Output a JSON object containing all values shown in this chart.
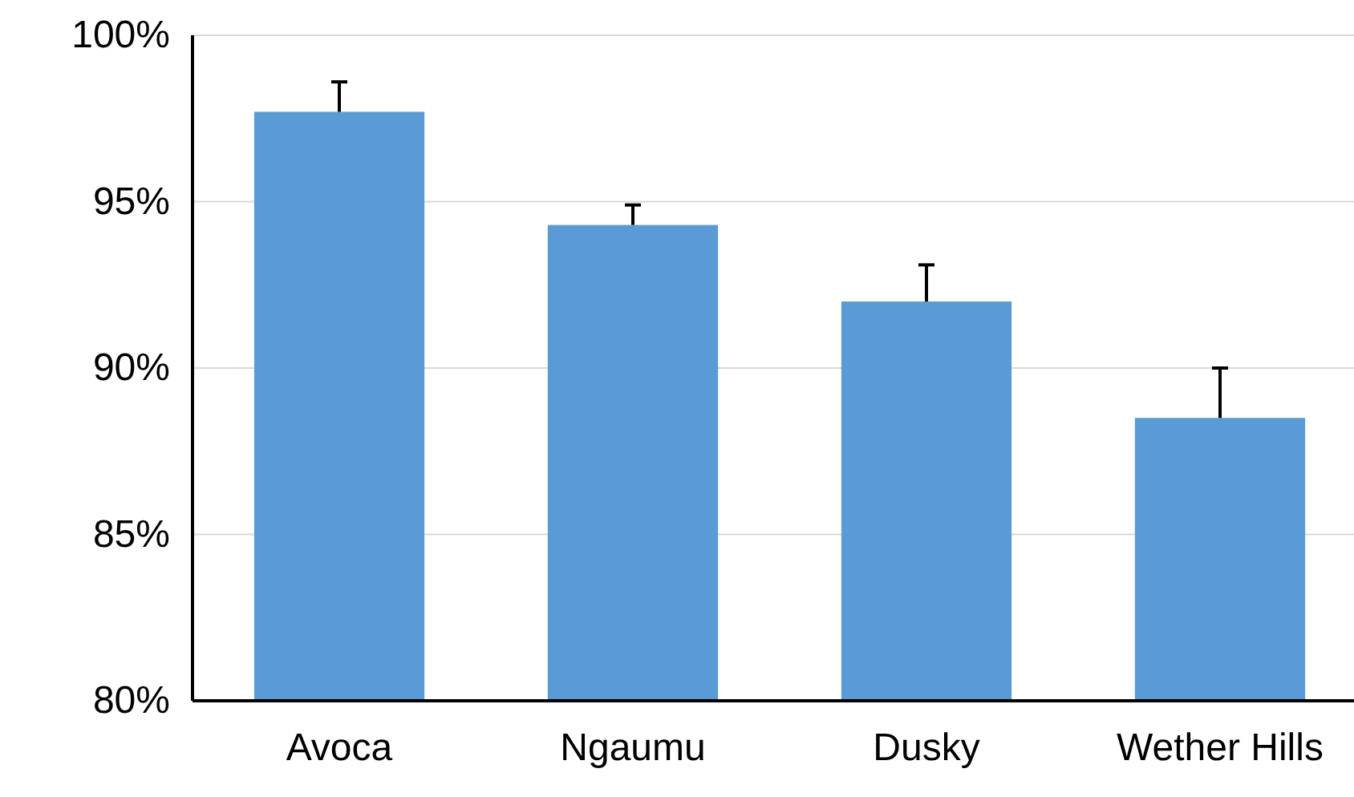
{
  "chart_data": {
    "type": "bar",
    "categories": [
      "Avoca",
      "Ngaumu",
      "Dusky",
      "Wether Hills"
    ],
    "values": [
      97.7,
      94.3,
      92.0,
      88.5
    ],
    "errors": [
      [
        97.7,
        98.6
      ],
      [
        94.3,
        94.9
      ],
      [
        92.0,
        93.1
      ],
      [
        88.5,
        90.0
      ]
    ],
    "color": "#5b9bd5",
    "ylim": [
      80,
      100
    ],
    "yticks": [
      {
        "value": 80,
        "label": "80%"
      },
      {
        "value": 85,
        "label": "85%"
      },
      {
        "value": 90,
        "label": "90%"
      },
      {
        "value": 95,
        "label": "95%"
      },
      {
        "value": 100,
        "label": "100%"
      }
    ],
    "grid": "y"
  }
}
